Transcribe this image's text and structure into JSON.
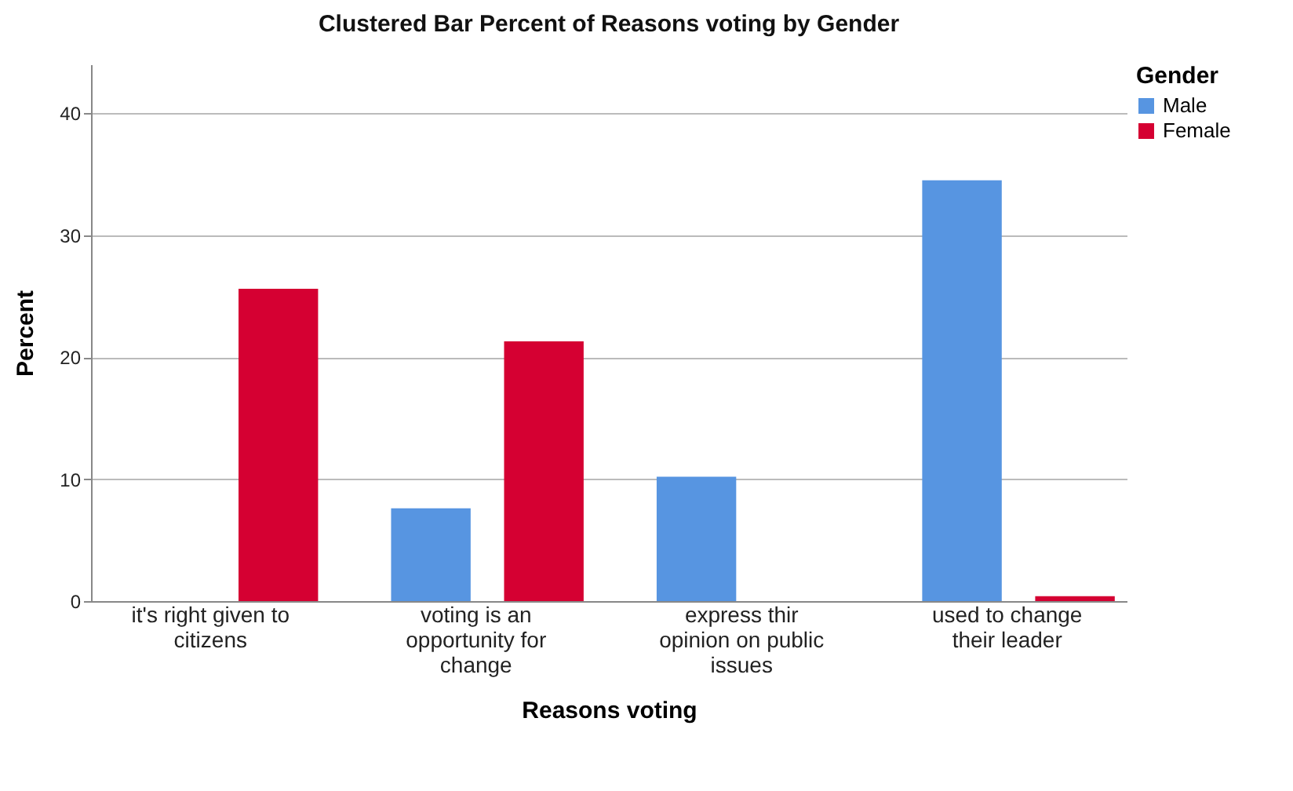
{
  "chart_data": {
    "type": "bar",
    "title": "Clustered Bar Percent of Reasons voting  by Gender",
    "xlabel": "Reasons voting",
    "ylabel": "Percent",
    "legend_title": "Gender",
    "categories": [
      "it's right given to citizens",
      "voting is an opportunity for change",
      "express thir opinion on public issues",
      "used to change their leader"
    ],
    "series": [
      {
        "name": "Male",
        "color": "#5795e1",
        "values": [
          null,
          7.6,
          10.2,
          34.5
        ]
      },
      {
        "name": "Female",
        "color": "#d50032",
        "values": [
          25.6,
          21.3,
          null,
          0.4
        ]
      }
    ],
    "ylim": [
      0,
      44
    ],
    "yticks": [
      0,
      10,
      20,
      30,
      40
    ],
    "grid": "y",
    "legend": "top right"
  }
}
